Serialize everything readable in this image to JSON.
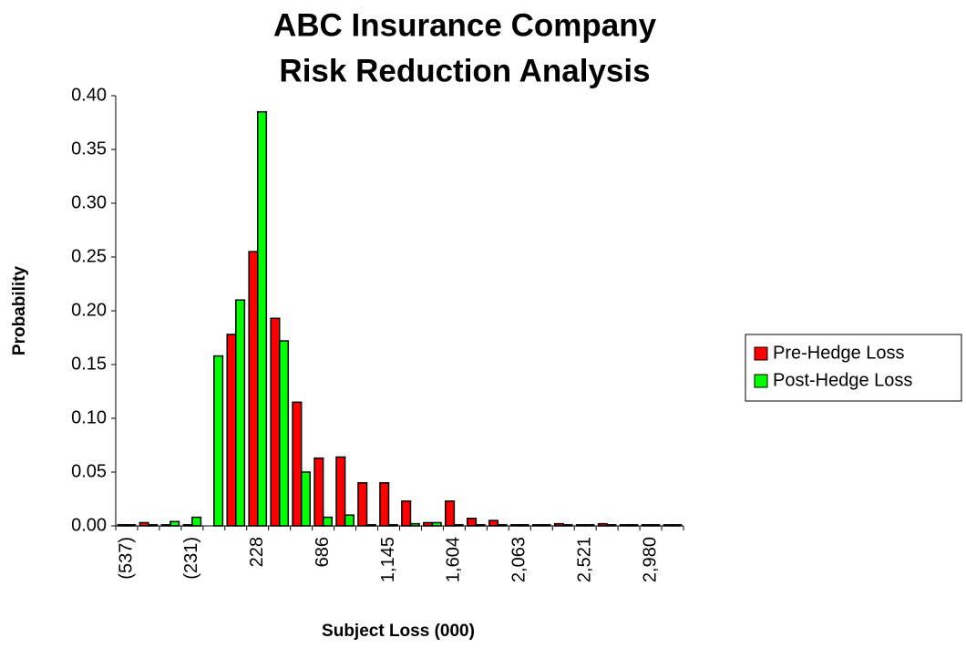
{
  "chart_data": {
    "type": "bar",
    "title": [
      "ABC Insurance Company",
      "Risk Reduction Analysis"
    ],
    "x_label": "Subject Loss (000)",
    "y_label": "Probability",
    "categories": [
      "(537)",
      null,
      null,
      "(231)",
      null,
      null,
      "228",
      null,
      null,
      "686",
      null,
      null,
      "1,145",
      null,
      null,
      "1,604",
      null,
      null,
      "2,063",
      null,
      null,
      "2,521",
      null,
      null,
      "2,980",
      null
    ],
    "series": [
      {
        "name": "Pre-Hedge Loss",
        "color": "#ff0000",
        "values": [
          0.001,
          0.003,
          0.001,
          0.001,
          0,
          0.178,
          0.255,
          0.193,
          0.115,
          0.063,
          0.064,
          0.04,
          0.04,
          0.023,
          0.003,
          0.023,
          0.007,
          0.005,
          0.001,
          0.001,
          0.002,
          0.001,
          0.002,
          0.001,
          0.001,
          0.001
        ]
      },
      {
        "name": "Post-Hedge Loss",
        "color": "#00ff00",
        "values": [
          0.001,
          0.001,
          0.004,
          0.008,
          0.158,
          0.21,
          0.385,
          0.172,
          0.05,
          0.008,
          0.01,
          0.001,
          0.001,
          0.002,
          0.003,
          0.001,
          0.001,
          0.001,
          0.001,
          0.001,
          0.001,
          0.001,
          0.001,
          0.001,
          0.001,
          0.001
        ]
      }
    ],
    "ylim": [
      0,
      0.4
    ],
    "yticks": [
      {
        "value": 0,
        "label": "0.00"
      },
      0.05,
      {
        "value": 0.1,
        "label": "0.10"
      },
      0.15,
      {
        "value": 0.2,
        "label": "0.20"
      },
      0.25,
      {
        "value": 0.3,
        "label": "0.30"
      },
      0.35,
      {
        "value": 0.4,
        "label": "0.40"
      }
    ],
    "legend": "right"
  }
}
